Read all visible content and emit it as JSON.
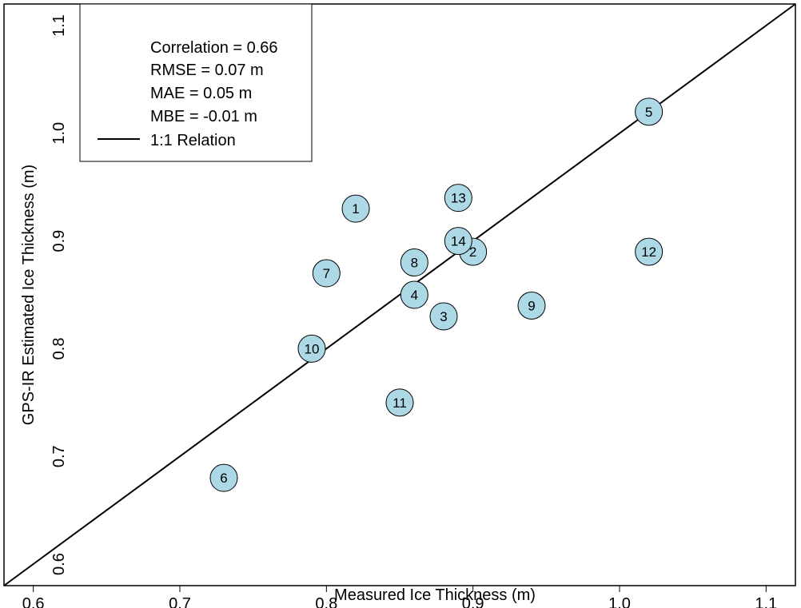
{
  "chart_data": {
    "type": "scatter",
    "xlabel": "Measured Ice Thickness (m)",
    "ylabel": "GPS-IR Estimated Ice Thickness (m)",
    "xlim": [
      0.58,
      1.12
    ],
    "ylim": [
      0.58,
      1.12
    ],
    "x_ticks": [
      "0.6",
      "0.7",
      "0.8",
      "0.9",
      "1.0",
      "1.1"
    ],
    "y_ticks": [
      "0.6",
      "0.7",
      "0.8",
      "0.9",
      "1.0",
      "1.1"
    ],
    "reference_line": {
      "slope": 1,
      "intercept": 0,
      "label": "1:1 Relation"
    },
    "legend": {
      "placement": "top-left",
      "lines": [
        "Correlation = 0.66",
        "RMSE = 0.07 m",
        "MAE = 0.05 m",
        "MBE = -0.01 m"
      ],
      "line_entry": "1:1 Relation"
    },
    "point_color": "#add8e6",
    "points": [
      {
        "label": "1",
        "x": 0.82,
        "y": 0.93
      },
      {
        "label": "2",
        "x": 0.9,
        "y": 0.89
      },
      {
        "label": "3",
        "x": 0.88,
        "y": 0.83
      },
      {
        "label": "4",
        "x": 0.86,
        "y": 0.85
      },
      {
        "label": "5",
        "x": 1.02,
        "y": 1.02
      },
      {
        "label": "6",
        "x": 0.73,
        "y": 0.68
      },
      {
        "label": "7",
        "x": 0.8,
        "y": 0.87
      },
      {
        "label": "8",
        "x": 0.86,
        "y": 0.88
      },
      {
        "label": "9",
        "x": 0.94,
        "y": 0.84
      },
      {
        "label": "10",
        "x": 0.79,
        "y": 0.8
      },
      {
        "label": "11",
        "x": 0.85,
        "y": 0.75
      },
      {
        "label": "12",
        "x": 1.02,
        "y": 0.89
      },
      {
        "label": "13",
        "x": 0.89,
        "y": 0.94
      },
      {
        "label": "14",
        "x": 0.89,
        "y": 0.9
      }
    ]
  }
}
